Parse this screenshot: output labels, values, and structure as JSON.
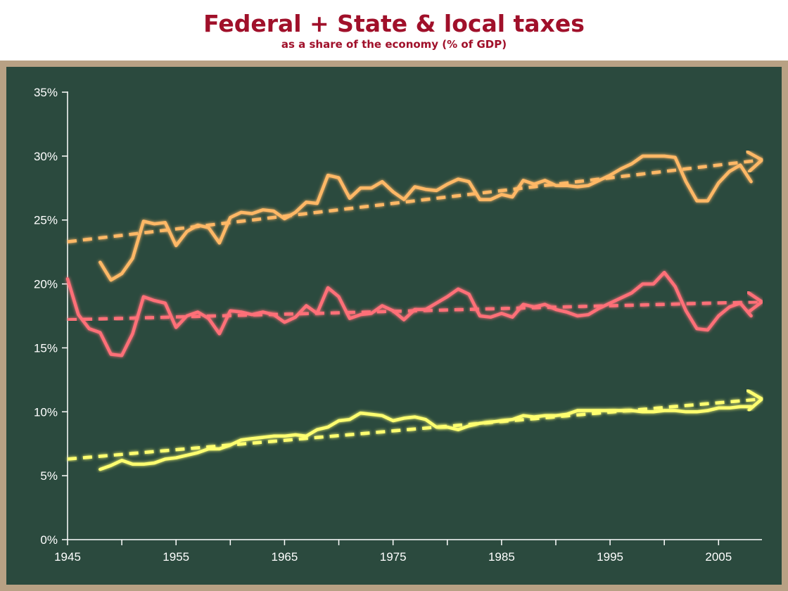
{
  "chart_data": {
    "type": "line",
    "title": "Federal + State & local taxes",
    "subtitle": "as a share of the economy (% of GDP)",
    "xlabel": "",
    "ylabel": "",
    "xlim": [
      1945,
      2009
    ],
    "ylim": [
      0,
      35
    ],
    "x_ticks": [
      1945,
      1955,
      1965,
      1975,
      1985,
      1995,
      2005
    ],
    "x_tick_labels": [
      "1945",
      "1955",
      "1965",
      "1975",
      "1985",
      "1995",
      "2005"
    ],
    "y_ticks": [
      0,
      5,
      10,
      15,
      20,
      25,
      30,
      35
    ],
    "y_tick_labels": [
      "0%",
      "5%",
      "10%",
      "15%",
      "20%",
      "25%",
      "30%",
      "35%"
    ],
    "grid": false,
    "legend": "none",
    "series": [
      {
        "color": "#ffb866",
        "style": "solid",
        "points": [
          [
            1948,
            21.7
          ],
          [
            1949,
            20.3
          ],
          [
            1950,
            20.8
          ],
          [
            1951,
            22.0
          ],
          [
            1952,
            24.9
          ],
          [
            1953,
            24.7
          ],
          [
            1954,
            24.8
          ],
          [
            1955,
            23.0
          ],
          [
            1956,
            24.1
          ],
          [
            1957,
            24.6
          ],
          [
            1958,
            24.4
          ],
          [
            1959,
            23.2
          ],
          [
            1960,
            25.2
          ],
          [
            1961,
            25.6
          ],
          [
            1962,
            25.5
          ],
          [
            1963,
            25.8
          ],
          [
            1964,
            25.7
          ],
          [
            1965,
            25.1
          ],
          [
            1966,
            25.6
          ],
          [
            1967,
            26.4
          ],
          [
            1968,
            26.3
          ],
          [
            1969,
            28.5
          ],
          [
            1970,
            28.3
          ],
          [
            1971,
            26.7
          ],
          [
            1972,
            27.5
          ],
          [
            1973,
            27.5
          ],
          [
            1974,
            28.0
          ],
          [
            1975,
            27.2
          ],
          [
            1976,
            26.6
          ],
          [
            1977,
            27.6
          ],
          [
            1978,
            27.4
          ],
          [
            1979,
            27.3
          ],
          [
            1980,
            27.8
          ],
          [
            1981,
            28.2
          ],
          [
            1982,
            28.0
          ],
          [
            1983,
            26.6
          ],
          [
            1984,
            26.6
          ],
          [
            1985,
            27.0
          ],
          [
            1986,
            26.8
          ],
          [
            1987,
            28.1
          ],
          [
            1988,
            27.8
          ],
          [
            1989,
            28.1
          ],
          [
            1990,
            27.7
          ],
          [
            1991,
            27.7
          ],
          [
            1992,
            27.6
          ],
          [
            1993,
            27.7
          ],
          [
            1994,
            28.1
          ],
          [
            1995,
            28.5
          ],
          [
            1996,
            29.0
          ],
          [
            1997,
            29.4
          ],
          [
            1998,
            30.0
          ],
          [
            1999,
            30.0
          ],
          [
            2000,
            30.0
          ],
          [
            2001,
            29.9
          ],
          [
            2002,
            28.0
          ],
          [
            2003,
            26.5
          ],
          [
            2004,
            26.5
          ],
          [
            2005,
            27.9
          ],
          [
            2006,
            28.8
          ],
          [
            2007,
            29.3
          ],
          [
            2008,
            28.0
          ]
        ]
      },
      {
        "color": "#ff6f78",
        "style": "solid",
        "points": [
          [
            1945,
            20.4
          ],
          [
            1946,
            17.6
          ],
          [
            1947,
            16.5
          ],
          [
            1948,
            16.2
          ],
          [
            1949,
            14.5
          ],
          [
            1950,
            14.4
          ],
          [
            1951,
            16.1
          ],
          [
            1952,
            19.0
          ],
          [
            1953,
            18.7
          ],
          [
            1954,
            18.5
          ],
          [
            1955,
            16.6
          ],
          [
            1956,
            17.5
          ],
          [
            1957,
            17.8
          ],
          [
            1958,
            17.3
          ],
          [
            1959,
            16.1
          ],
          [
            1960,
            17.9
          ],
          [
            1961,
            17.8
          ],
          [
            1962,
            17.6
          ],
          [
            1963,
            17.8
          ],
          [
            1964,
            17.6
          ],
          [
            1965,
            17.0
          ],
          [
            1966,
            17.4
          ],
          [
            1967,
            18.3
          ],
          [
            1968,
            17.7
          ],
          [
            1969,
            19.7
          ],
          [
            1970,
            19.0
          ],
          [
            1971,
            17.3
          ],
          [
            1972,
            17.6
          ],
          [
            1973,
            17.7
          ],
          [
            1974,
            18.3
          ],
          [
            1975,
            17.9
          ],
          [
            1976,
            17.2
          ],
          [
            1977,
            18.0
          ],
          [
            1978,
            18.0
          ],
          [
            1979,
            18.5
          ],
          [
            1980,
            19.0
          ],
          [
            1981,
            19.6
          ],
          [
            1982,
            19.2
          ],
          [
            1983,
            17.5
          ],
          [
            1984,
            17.4
          ],
          [
            1985,
            17.7
          ],
          [
            1986,
            17.4
          ],
          [
            1987,
            18.4
          ],
          [
            1988,
            18.2
          ],
          [
            1989,
            18.4
          ],
          [
            1990,
            18.0
          ],
          [
            1991,
            17.8
          ],
          [
            1992,
            17.5
          ],
          [
            1993,
            17.6
          ],
          [
            1994,
            18.1
          ],
          [
            1995,
            18.5
          ],
          [
            1996,
            18.9
          ],
          [
            1997,
            19.3
          ],
          [
            1998,
            20.0
          ],
          [
            1999,
            20.0
          ],
          [
            2000,
            20.9
          ],
          [
            2001,
            19.8
          ],
          [
            2002,
            17.9
          ],
          [
            2003,
            16.5
          ],
          [
            2004,
            16.4
          ],
          [
            2005,
            17.5
          ],
          [
            2006,
            18.2
          ],
          [
            2007,
            18.5
          ],
          [
            2008,
            17.5
          ]
        ]
      },
      {
        "color": "#ffff70",
        "style": "solid",
        "points": [
          [
            1948,
            5.5
          ],
          [
            1949,
            5.8
          ],
          [
            1950,
            6.2
          ],
          [
            1951,
            5.9
          ],
          [
            1952,
            5.9
          ],
          [
            1953,
            6.0
          ],
          [
            1954,
            6.3
          ],
          [
            1955,
            6.4
          ],
          [
            1956,
            6.6
          ],
          [
            1957,
            6.8
          ],
          [
            1958,
            7.1
          ],
          [
            1959,
            7.1
          ],
          [
            1960,
            7.4
          ],
          [
            1961,
            7.8
          ],
          [
            1962,
            7.9
          ],
          [
            1963,
            8.0
          ],
          [
            1964,
            8.1
          ],
          [
            1965,
            8.1
          ],
          [
            1966,
            8.2
          ],
          [
            1967,
            8.1
          ],
          [
            1968,
            8.6
          ],
          [
            1969,
            8.8
          ],
          [
            1970,
            9.3
          ],
          [
            1971,
            9.4
          ],
          [
            1972,
            9.9
          ],
          [
            1973,
            9.8
          ],
          [
            1974,
            9.7
          ],
          [
            1975,
            9.3
          ],
          [
            1976,
            9.5
          ],
          [
            1977,
            9.6
          ],
          [
            1978,
            9.4
          ],
          [
            1979,
            8.8
          ],
          [
            1980,
            8.8
          ],
          [
            1981,
            8.6
          ],
          [
            1982,
            8.9
          ],
          [
            1983,
            9.1
          ],
          [
            1984,
            9.2
          ],
          [
            1985,
            9.3
          ],
          [
            1986,
            9.4
          ],
          [
            1987,
            9.7
          ],
          [
            1988,
            9.6
          ],
          [
            1989,
            9.7
          ],
          [
            1990,
            9.7
          ],
          [
            1991,
            9.8
          ],
          [
            1992,
            10.1
          ],
          [
            1993,
            10.1
          ],
          [
            1994,
            10.1
          ],
          [
            1995,
            10.1
          ],
          [
            1996,
            10.1
          ],
          [
            1997,
            10.1
          ],
          [
            1998,
            10.0
          ],
          [
            1999,
            10.0
          ],
          [
            2000,
            10.1
          ],
          [
            2001,
            10.1
          ],
          [
            2002,
            10.0
          ],
          [
            2003,
            10.0
          ],
          [
            2004,
            10.1
          ],
          [
            2005,
            10.3
          ],
          [
            2006,
            10.3
          ],
          [
            2007,
            10.4
          ],
          [
            2008,
            10.4
          ]
        ]
      },
      {
        "color": "#ffb866",
        "style": "dashed-trend-arrow",
        "points": [
          [
            1945,
            23.3
          ],
          [
            2009,
            29.7
          ]
        ]
      },
      {
        "color": "#ff6f78",
        "style": "dashed-trend-arrow",
        "points": [
          [
            1945,
            17.2
          ],
          [
            2009,
            18.6
          ]
        ]
      },
      {
        "color": "#ffff70",
        "style": "dashed-trend-arrow",
        "points": [
          [
            1945,
            6.3
          ],
          [
            2009,
            11.0
          ]
        ]
      }
    ]
  }
}
